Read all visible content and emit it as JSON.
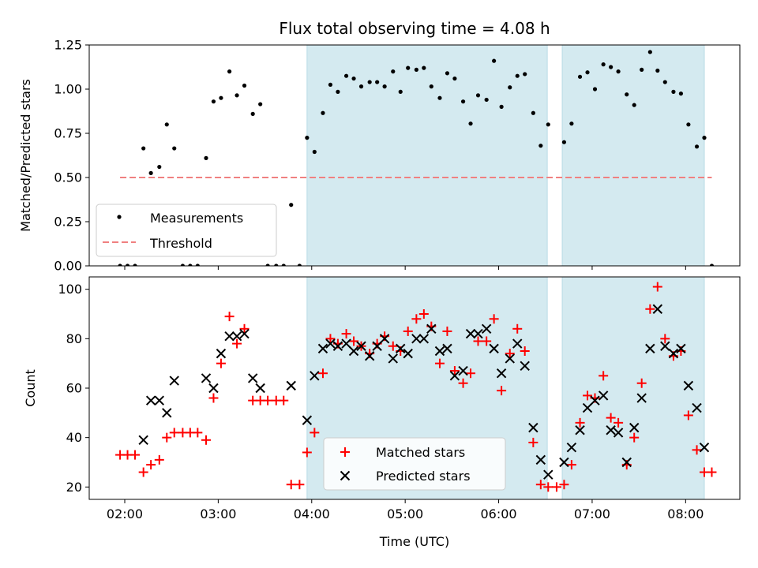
{
  "chart_data": {
    "type": "scatter",
    "title": "Flux total observing time = 4.08 h",
    "xlabel": "Time (UTC)",
    "x_ticks": [
      "02:00",
      "03:00",
      "04:00",
      "05:00",
      "06:00",
      "07:00",
      "08:00"
    ],
    "x_tick_hours": [
      2,
      3,
      4,
      5,
      6,
      7,
      8
    ],
    "xlim_hours": [
      1.62,
      8.58
    ],
    "observing_windows_hours": [
      [
        3.95,
        6.52
      ],
      [
        6.68,
        8.2
      ]
    ],
    "colors": {
      "window": "#d4eaf0",
      "window_edge": "#b8dbe6",
      "measurement": "#000000",
      "threshold": "#f08080",
      "matched": "#ff0000",
      "predicted": "#000000"
    },
    "panels": [
      {
        "ylabel": "Matched/Predicted stars",
        "ylim": [
          0,
          1.25
        ],
        "yticks": [
          0.0,
          0.25,
          0.5,
          0.75,
          1.0,
          1.25
        ],
        "ytick_labels": [
          "0.00",
          "0.25",
          "0.50",
          "0.75",
          "1.00",
          "1.25"
        ],
        "legend_position": "lower-left",
        "series": [
          {
            "name": "Measurements",
            "marker": "dot",
            "x": [
              1.95,
              2.03,
              2.11,
              2.2,
              2.28,
              2.37,
              2.45,
              2.53,
              2.62,
              2.7,
              2.78,
              2.87,
              2.95,
              3.03,
              3.12,
              3.2,
              3.28,
              3.37,
              3.45,
              3.53,
              3.62,
              3.7,
              3.78,
              3.87,
              3.95,
              4.03,
              4.12,
              4.2,
              4.28,
              4.37,
              4.45,
              4.53,
              4.62,
              4.7,
              4.78,
              4.87,
              4.95,
              5.03,
              5.12,
              5.2,
              5.28,
              5.37,
              5.45,
              5.53,
              5.62,
              5.7,
              5.78,
              5.87,
              5.95,
              6.03,
              6.12,
              6.2,
              6.28,
              6.37,
              6.45,
              6.53,
              6.7,
              6.78,
              6.87,
              6.95,
              7.03,
              7.12,
              7.2,
              7.28,
              7.37,
              7.45,
              7.53,
              7.62,
              7.7,
              7.78,
              7.87,
              7.95,
              8.03,
              8.12,
              8.2,
              8.28
            ],
            "y": [
              0.0,
              0.0,
              0.0,
              0.665,
              0.525,
              0.56,
              0.8,
              0.665,
              0.0,
              0.0,
              0.0,
              0.61,
              0.93,
              0.95,
              1.1,
              0.965,
              1.02,
              0.86,
              0.915,
              0.0,
              0.0,
              0.0,
              0.345,
              0.0,
              0.725,
              0.645,
              0.865,
              1.025,
              0.985,
              1.075,
              1.06,
              1.015,
              1.04,
              1.04,
              1.015,
              1.1,
              0.985,
              1.12,
              1.11,
              1.12,
              1.015,
              0.95,
              1.09,
              1.06,
              0.93,
              0.805,
              0.965,
              0.94,
              1.16,
              0.9,
              1.01,
              1.075,
              1.085,
              0.865,
              0.68,
              0.8,
              0.7,
              0.805,
              1.07,
              1.095,
              1.0,
              1.14,
              1.125,
              1.1,
              0.97,
              0.91,
              1.11,
              1.21,
              1.105,
              1.04,
              0.985,
              0.975,
              0.8,
              0.675,
              0.725,
              0.0
            ]
          },
          {
            "name": "Threshold",
            "marker": "dashed-line",
            "x": [
              1.95,
              8.28
            ],
            "y": [
              0.5,
              0.5
            ]
          }
        ]
      },
      {
        "ylabel": "Count",
        "ylim": [
          15,
          105
        ],
        "yticks": [
          20,
          40,
          60,
          80,
          100
        ],
        "ytick_labels": [
          "20",
          "40",
          "60",
          "80",
          "100"
        ],
        "legend_position": "lower-center",
        "series": [
          {
            "name": "Matched stars",
            "marker": "plus",
            "x": [
              1.95,
              2.03,
              2.11,
              2.2,
              2.28,
              2.37,
              2.45,
              2.53,
              2.62,
              2.7,
              2.78,
              2.87,
              2.95,
              3.03,
              3.12,
              3.2,
              3.28,
              3.37,
              3.45,
              3.53,
              3.62,
              3.7,
              3.78,
              3.87,
              3.95,
              4.03,
              4.12,
              4.2,
              4.28,
              4.37,
              4.45,
              4.53,
              4.62,
              4.7,
              4.78,
              4.87,
              4.95,
              5.03,
              5.12,
              5.2,
              5.28,
              5.37,
              5.45,
              5.53,
              5.62,
              5.7,
              5.78,
              5.87,
              5.95,
              6.03,
              6.12,
              6.2,
              6.28,
              6.37,
              6.45,
              6.53,
              6.62,
              6.7,
              6.78,
              6.87,
              6.95,
              7.03,
              7.12,
              7.2,
              7.28,
              7.37,
              7.45,
              7.53,
              7.62,
              7.7,
              7.78,
              7.87,
              7.95,
              8.03,
              8.12,
              8.2,
              8.28
            ],
            "y": [
              33,
              33,
              33,
              26,
              29,
              31,
              40,
              42,
              42,
              42,
              42,
              39,
              56,
              70,
              89,
              78,
              84,
              55,
              55,
              55,
              55,
              55,
              21,
              21,
              34,
              42,
              66,
              80,
              78,
              82,
              79,
              77,
              74,
              78,
              81,
              77,
              75,
              83,
              88,
              90,
              85,
              70,
              83,
              67,
              62,
              66,
              79,
              79,
              88,
              59,
              74,
              84,
              75,
              38,
              21,
              20,
              20,
              21,
              29,
              46,
              57,
              56,
              65,
              48,
              46,
              29,
              40,
              62,
              92,
              101,
              80,
              73,
              75,
              49,
              35,
              26,
              26
            ]
          },
          {
            "name": "Predicted stars",
            "marker": "x",
            "x": [
              2.2,
              2.28,
              2.37,
              2.45,
              2.53,
              2.87,
              2.95,
              3.03,
              3.12,
              3.2,
              3.28,
              3.37,
              3.45,
              3.78,
              3.95,
              4.03,
              4.12,
              4.2,
              4.28,
              4.37,
              4.45,
              4.53,
              4.62,
              4.7,
              4.78,
              4.87,
              4.95,
              5.03,
              5.12,
              5.2,
              5.28,
              5.37,
              5.45,
              5.53,
              5.62,
              5.7,
              5.78,
              5.87,
              5.95,
              6.03,
              6.12,
              6.2,
              6.28,
              6.37,
              6.45,
              6.53,
              6.7,
              6.78,
              6.87,
              6.95,
              7.03,
              7.12,
              7.2,
              7.28,
              7.37,
              7.45,
              7.53,
              7.62,
              7.7,
              7.78,
              7.87,
              7.95,
              8.03,
              8.12,
              8.2
            ],
            "y": [
              39,
              55,
              55,
              50,
              63,
              64,
              60,
              74,
              81,
              81,
              82,
              64,
              60,
              61,
              47,
              65,
              76,
              78,
              77,
              78,
              75,
              77,
              73,
              77,
              80,
              72,
              76,
              74,
              80,
              80,
              84,
              75,
              76,
              65,
              67,
              82,
              82,
              84,
              76,
              66,
              72,
              78,
              69,
              44,
              31,
              25,
              30,
              36,
              43,
              52,
              55,
              57,
              43,
              42,
              30,
              44,
              56,
              76,
              92,
              77,
              74,
              76,
              61,
              52,
              36
            ]
          }
        ]
      }
    ]
  }
}
